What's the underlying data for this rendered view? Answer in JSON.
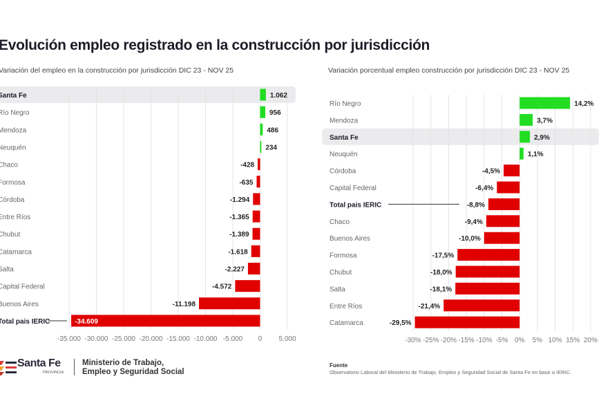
{
  "title": "Evolución empleo registrado en la construcción por jurisdicción",
  "colors": {
    "positive": "#22dd22",
    "negative": "#e00000",
    "highlight": "#ebebee",
    "grid": "#e4e4e4"
  },
  "chart_data": [
    {
      "type": "bar",
      "orientation": "horizontal",
      "title": "Variación del empleo en la construcción por jurisdicción DIC 23 - NOV 25",
      "categories": [
        "Santa Fe",
        "Río Negro",
        "Mendoza",
        "Neuquén",
        "Chaco",
        "Formosa",
        "Córdoba",
        "Entre Ríos",
        "Chubut",
        "Catamarca",
        "Salta",
        "Capital Federal",
        "Buenos Aires",
        "Total pais IERIC"
      ],
      "values": [
        1062,
        956,
        486,
        234,
        -428,
        -635,
        -1294,
        -1365,
        -1389,
        -1618,
        -2227,
        -4572,
        -11198,
        -34609
      ],
      "value_labels": [
        "1.062",
        "956",
        "486",
        "234",
        "-428",
        "-635",
        "-1.294",
        "-1.365",
        "-1.389",
        "-1.618",
        "-2.227",
        "-4.572",
        "-11.198",
        "-34.609"
      ],
      "highlight": [
        "Santa Fe"
      ],
      "bold": [
        "Santa Fe",
        "Total pais IERIC"
      ],
      "xlim": [
        -35000,
        5000
      ],
      "ticks": [
        -35000,
        -30000,
        -25000,
        -20000,
        -15000,
        -10000,
        -5000,
        0,
        5000
      ],
      "tick_labels": [
        "-35.000",
        "-30.000",
        "-25.000",
        "-20.000",
        "-15.000",
        "-10.000",
        "-5.000",
        "0",
        "5.000"
      ],
      "grid": true
    },
    {
      "type": "bar",
      "orientation": "horizontal",
      "title": "Variación  porcentual empleo construcción por jurisdicción DIC 23 - NOV 25",
      "categories": [
        "Río Negro",
        "Mendoza",
        "Santa Fe",
        "Neuquén",
        "Córdoba",
        "Capital Federal",
        "Total pais IERIC",
        "Chaco",
        "Buenos Aires",
        "Formosa",
        "Chubut",
        "Salta",
        "Entre Ríos",
        "Catamarca"
      ],
      "values": [
        14.2,
        3.7,
        2.9,
        1.1,
        -4.5,
        -6.4,
        -8.8,
        -9.4,
        -10.0,
        -17.5,
        -18.0,
        -18.1,
        -21.4,
        -29.5
      ],
      "value_labels": [
        "14,2%",
        "3,7%",
        "2,9%",
        "1,1%",
        "-4,5%",
        "-6,4%",
        "-8,8%",
        "-9,4%",
        "-10,0%",
        "-17,5%",
        "-18,0%",
        "-18,1%",
        "-21,4%",
        "-29,5%"
      ],
      "highlight": [
        "Santa Fe"
      ],
      "bold": [
        "Santa Fe",
        "Total pais IERIC"
      ],
      "xlim": [
        -30,
        20
      ],
      "ticks": [
        -30,
        -25,
        -20,
        -15,
        -10,
        -5,
        0,
        5,
        10,
        15,
        20
      ],
      "tick_labels": [
        "-30%",
        "-25%",
        "-20%",
        "-15%",
        "-10%",
        "-5%",
        "0%",
        "5%",
        "10%",
        "15%",
        "20%"
      ],
      "grid": true
    }
  ],
  "footer": {
    "logo_name": "Santa Fe",
    "logo_sub": "PROVINCIA",
    "ministry_line1": "Ministerio de Trabajo,",
    "ministry_line2": "Empleo y Seguridad Social",
    "source_heading": "Fuente",
    "source_text": "Observatorio Laboral del Ministerio de Trabajo, Empleo y Seguridad Social de Santa Fe en base a IERIC."
  }
}
